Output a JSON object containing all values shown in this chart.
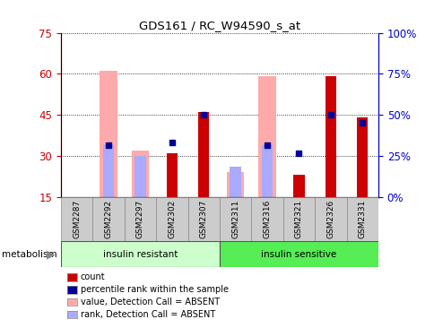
{
  "title": "GDS161 / RC_W94590_s_at",
  "samples": [
    "GSM2287",
    "GSM2292",
    "GSM2297",
    "GSM2302",
    "GSM2307",
    "GSM2311",
    "GSM2316",
    "GSM2321",
    "GSM2326",
    "GSM2331"
  ],
  "ylim_left": [
    15,
    75
  ],
  "ylim_right": [
    0,
    100
  ],
  "yticks_left": [
    15,
    30,
    45,
    60,
    75
  ],
  "yticks_right": [
    0,
    25,
    50,
    75,
    100
  ],
  "yticklabels_right": [
    "0%",
    "25%",
    "50%",
    "75%",
    "100%"
  ],
  "count_bars": [
    null,
    null,
    null,
    31,
    46,
    null,
    null,
    23,
    59,
    44
  ],
  "percentile_bars": [
    null,
    34,
    null,
    35,
    45,
    null,
    34,
    31,
    45,
    42
  ],
  "absent_value_bars": [
    null,
    61,
    32,
    null,
    null,
    24,
    59,
    null,
    null,
    null
  ],
  "absent_rank_bars": [
    null,
    34,
    30,
    null,
    null,
    26,
    34,
    null,
    null,
    null
  ],
  "group1_label": "insulin resistant",
  "group2_label": "insulin sensitive",
  "group1_indices": [
    0,
    1,
    2,
    3,
    4
  ],
  "group2_indices": [
    5,
    6,
    7,
    8,
    9
  ],
  "group1_color": "#ccffcc",
  "group2_color": "#55ee55",
  "count_color": "#cc0000",
  "percentile_color": "#000099",
  "absent_value_color": "#ffaaaa",
  "absent_rank_color": "#aaaaff",
  "legend_items": [
    "count",
    "percentile rank within the sample",
    "value, Detection Call = ABSENT",
    "rank, Detection Call = ABSENT"
  ],
  "legend_colors": [
    "#cc0000",
    "#000099",
    "#ffaaaa",
    "#aaaaff"
  ],
  "metabolism_label": "metabolism",
  "ytick_color_left": "#cc0000",
  "ytick_color_right": "#0000cc"
}
